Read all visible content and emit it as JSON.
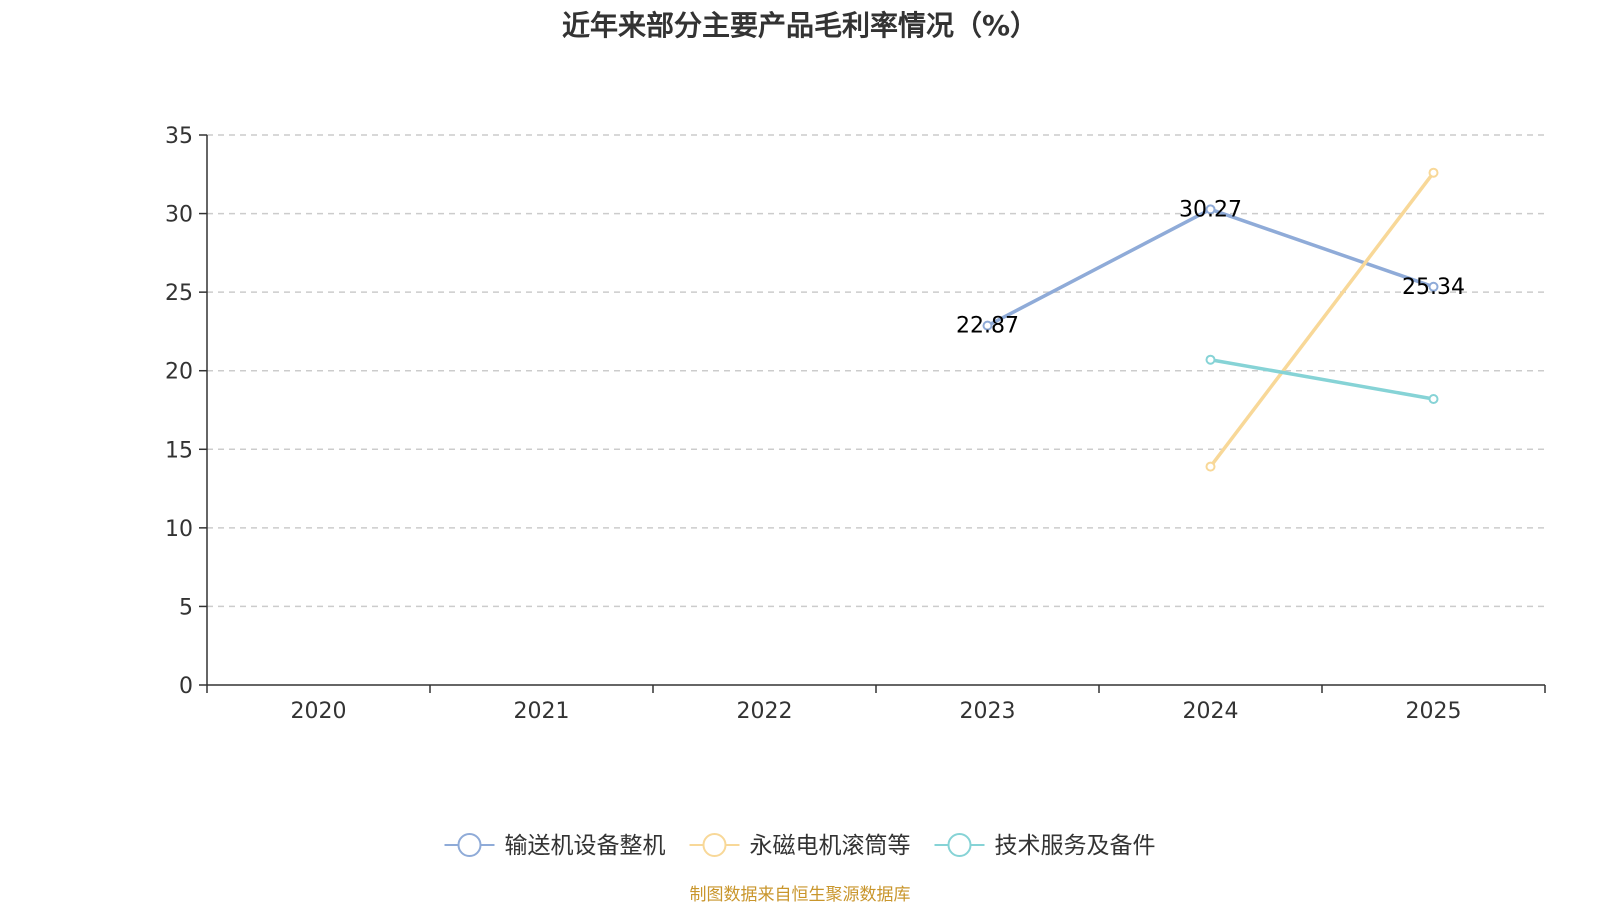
{
  "chart_data": {
    "type": "line",
    "title": "近年来部分主要产品毛利率情况（%）",
    "categories": [
      "2020",
      "2021",
      "2022",
      "2023",
      "2024",
      "2025"
    ],
    "ylim": [
      0,
      35
    ],
    "yticks": [
      0,
      5,
      10,
      15,
      20,
      25,
      30,
      35
    ],
    "grid": true,
    "legend_position": "bottom-center",
    "series": [
      {
        "name": "输送机设备整机",
        "color": "#8fabd8",
        "values": [
          null,
          null,
          null,
          22.87,
          30.27,
          25.34
        ],
        "show_labels": true
      },
      {
        "name": "永磁电机滚筒等",
        "color": "#f8d898",
        "values": [
          null,
          null,
          null,
          null,
          13.9,
          32.6
        ],
        "show_labels": false
      },
      {
        "name": "技术服务及备件",
        "color": "#86d3d6",
        "values": [
          null,
          null,
          null,
          null,
          20.7,
          18.2
        ],
        "show_labels": false
      }
    ],
    "labels": [
      "22.87",
      "30.27",
      "25.34"
    ]
  },
  "source": "制图数据来自恒生聚源数据库"
}
